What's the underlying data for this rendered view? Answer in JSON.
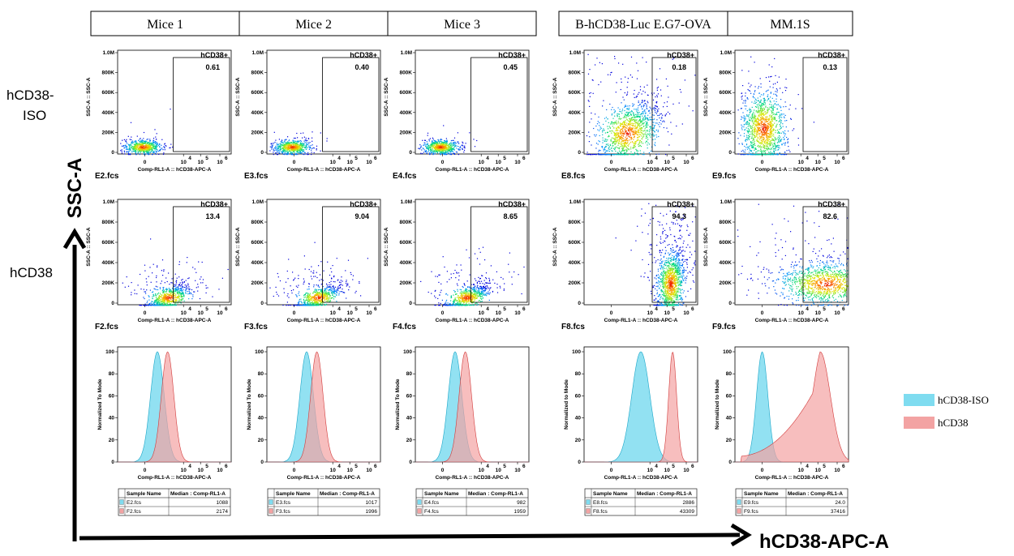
{
  "columns": [
    "Mice 1",
    "Mice 2",
    "Mice 3",
    "B-hCD38-Luc E.G7-OVA",
    "MM.1S"
  ],
  "row_labels": [
    [
      "hCD38-",
      "ISO"
    ],
    [
      "hCD38"
    ]
  ],
  "y_axis_big": "SSC-A",
  "x_axis_big": "hCD38-APC-A",
  "scatter_y_axis_label": "SSC-A :: SSC-A",
  "scatter_x_axis_label": "Comp-RL1-A :: hCD38-APC-A",
  "hist_y_axis_label_mice": "Normalized To Mode",
  "hist_y_axis_label_lines": "Normalized to Mode",
  "hist_x_axis_label": "Comp-RL1-A :: hCD38-APC-A",
  "gate_name": "hCD38+",
  "y_ticks": [
    "0",
    "200K",
    "400K",
    "600K",
    "800K",
    "1.0M"
  ],
  "x_ticks": [
    {
      "base": "0",
      "exp": ""
    },
    {
      "base": "10",
      "exp": "4"
    },
    {
      "base": "10",
      "exp": "5"
    },
    {
      "base": "10",
      "exp": "6"
    }
  ],
  "hist_y_ticks": [
    "0",
    "20",
    "40",
    "60",
    "80",
    "100"
  ],
  "table_headers": [
    "Sample Name",
    "Median : Comp-RL1-A"
  ],
  "legend": [
    {
      "label": "hCD38-ISO",
      "color": "#7fdcf0"
    },
    {
      "label": "hCD38",
      "color": "#f3a3a3"
    }
  ],
  "chart_data": [
    {
      "type": "scatter",
      "panel": "Mice 1 / hCD38-ISO",
      "file": "E2.fcs",
      "gate": "hCD38+",
      "gate_percent": "0.61"
    },
    {
      "type": "scatter",
      "panel": "Mice 2 / hCD38-ISO",
      "file": "E3.fcs",
      "gate": "hCD38+",
      "gate_percent": "0.40"
    },
    {
      "type": "scatter",
      "panel": "Mice 3 / hCD38-ISO",
      "file": "E4.fcs",
      "gate": "hCD38+",
      "gate_percent": "0.45"
    },
    {
      "type": "scatter",
      "panel": "B-hCD38-Luc E.G7-OVA / hCD38-ISO",
      "file": "E8.fcs",
      "gate": "hCD38+",
      "gate_percent": "0.18"
    },
    {
      "type": "scatter",
      "panel": "MM.1S / hCD38-ISO",
      "file": "E9.fcs",
      "gate": "hCD38+",
      "gate_percent": "0.13"
    },
    {
      "type": "scatter",
      "panel": "Mice 1 / hCD38",
      "file": "F2.fcs",
      "gate": "hCD38+",
      "gate_percent": "13.4"
    },
    {
      "type": "scatter",
      "panel": "Mice 2 / hCD38",
      "file": "F3.fcs",
      "gate": "hCD38+",
      "gate_percent": "9.04"
    },
    {
      "type": "scatter",
      "panel": "Mice 3 / hCD38",
      "file": "F4.fcs",
      "gate": "hCD38+",
      "gate_percent": "8.65"
    },
    {
      "type": "scatter",
      "panel": "B-hCD38-Luc E.G7-OVA / hCD38",
      "file": "F8.fcs",
      "gate": "hCD38+",
      "gate_percent": "94.3"
    },
    {
      "type": "scatter",
      "panel": "MM.1S / hCD38",
      "file": "F9.fcs",
      "gate": "hCD38+",
      "gate_percent": "82.6"
    },
    {
      "type": "table",
      "panel": "Mice 1",
      "rows": [
        {
          "sample": "E2.fcs",
          "median": "1088"
        },
        {
          "sample": "F2.fcs",
          "median": "2174"
        }
      ]
    },
    {
      "type": "table",
      "panel": "Mice 2",
      "rows": [
        {
          "sample": "E3.fcs",
          "median": "1017"
        },
        {
          "sample": "F3.fcs",
          "median": "1996"
        }
      ]
    },
    {
      "type": "table",
      "panel": "Mice 3",
      "rows": [
        {
          "sample": "E4.fcs",
          "median": "982"
        },
        {
          "sample": "F4.fcs",
          "median": "1959"
        }
      ]
    },
    {
      "type": "table",
      "panel": "B-hCD38-Luc E.G7-OVA",
      "rows": [
        {
          "sample": "E8.fcs",
          "median": "2886"
        },
        {
          "sample": "F8.fcs",
          "median": "43309"
        }
      ]
    },
    {
      "type": "table",
      "panel": "MM.1S",
      "rows": [
        {
          "sample": "E9.fcs",
          "median": "24.0"
        },
        {
          "sample": "F9.fcs",
          "median": "37416"
        }
      ]
    }
  ]
}
